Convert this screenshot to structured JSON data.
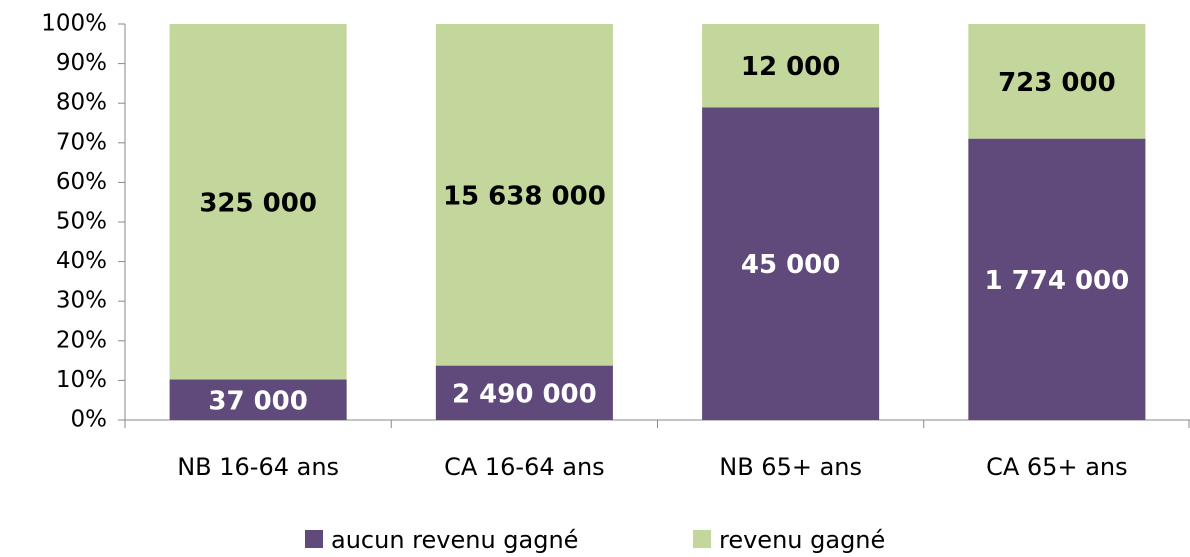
{
  "chart_data": {
    "type": "bar",
    "stacked": "percent",
    "categories": [
      "NB 16-64 ans",
      "CA 16-64 ans",
      "NB 65+ ans",
      "CA 65+ ans"
    ],
    "series": [
      {
        "name": "aucun revenu gagné",
        "color": "#604a7b",
        "label_color": "#ffffff",
        "values": [
          37000,
          2490000,
          45000,
          1774000
        ],
        "value_labels": [
          "37 000",
          "2 490 000",
          "45 000",
          "1 774 000"
        ]
      },
      {
        "name": "revenu gagné",
        "color": "#c3d69b",
        "label_color": "#000000",
        "values": [
          325000,
          15638000,
          12000,
          723000
        ],
        "value_labels": [
          "325 000",
          "15 638 000",
          "12 000",
          "723 000"
        ]
      }
    ],
    "ylim": [
      0,
      100
    ],
    "yticks": [
      {
        "value": 0,
        "label": "0%"
      },
      {
        "value": 10,
        "label": "10%"
      },
      {
        "value": 20,
        "label": "20%"
      },
      {
        "value": 30,
        "label": "30%"
      },
      {
        "value": 40,
        "label": "40%"
      },
      {
        "value": 50,
        "label": "50%"
      },
      {
        "value": 60,
        "label": "60%"
      },
      {
        "value": 70,
        "label": "70%"
      },
      {
        "value": 80,
        "label": "80%"
      },
      {
        "value": 90,
        "label": "90%"
      },
      {
        "value": 100,
        "label": "100%"
      }
    ],
    "legend": "bottom"
  }
}
